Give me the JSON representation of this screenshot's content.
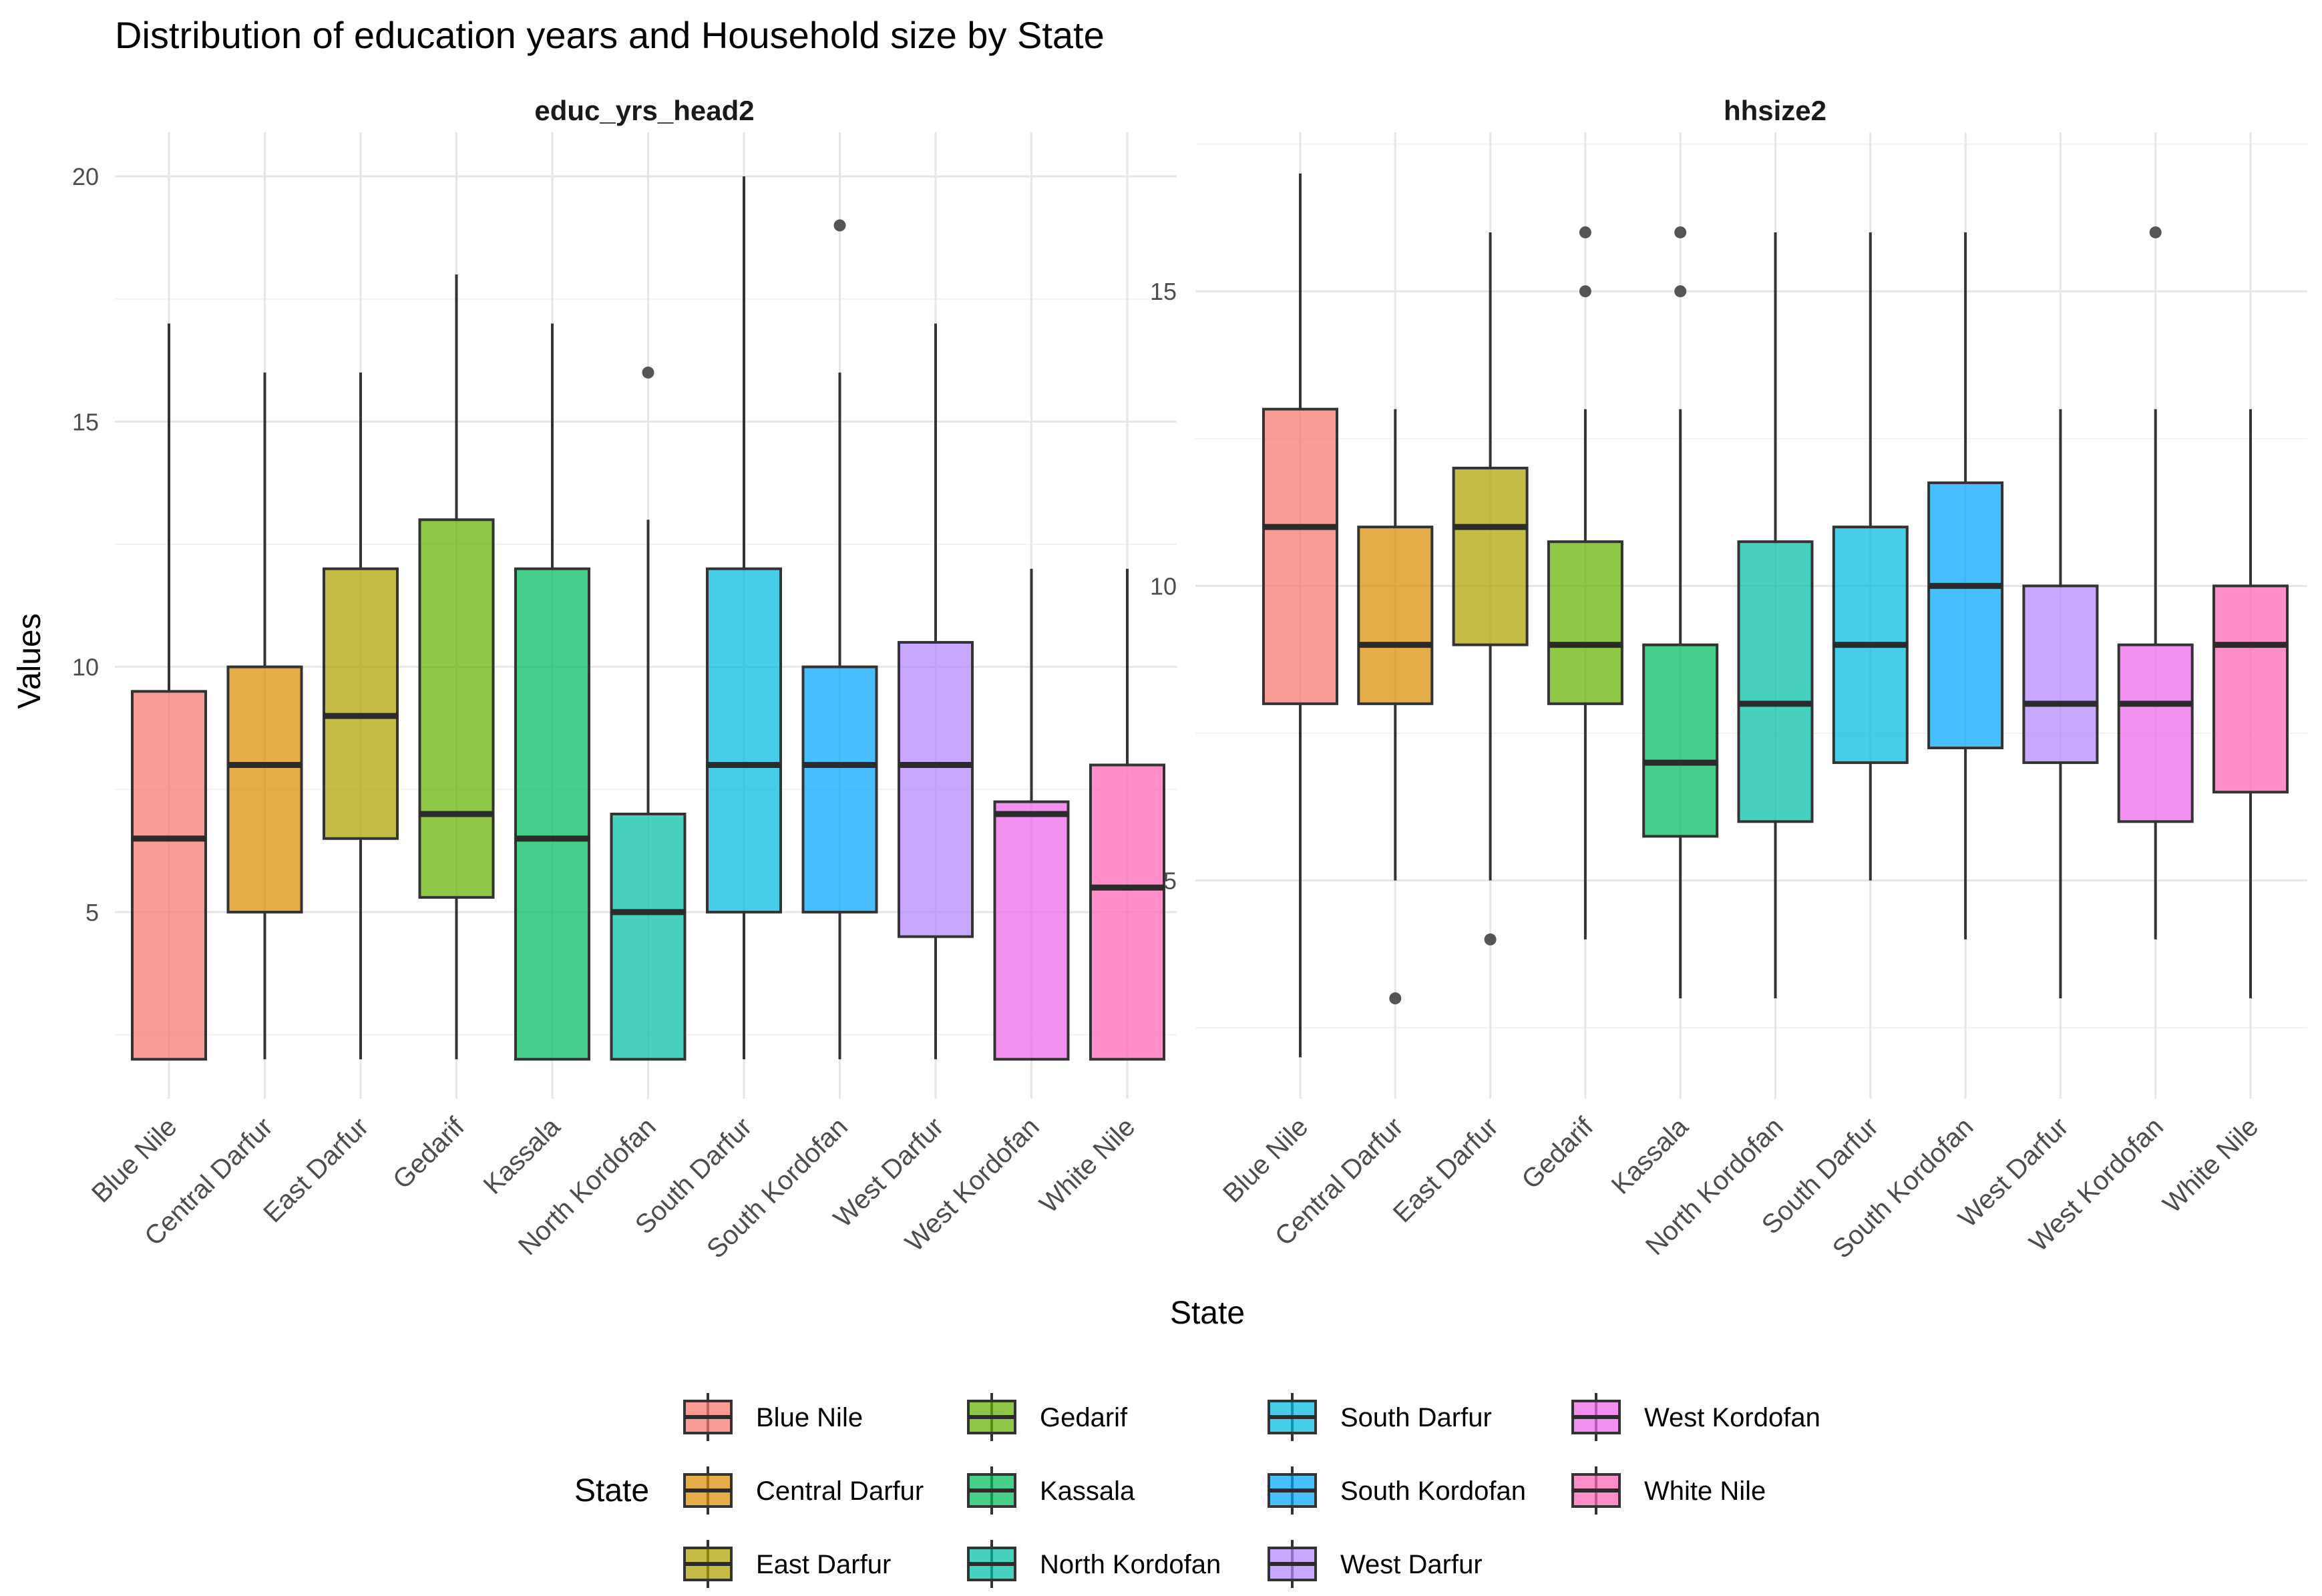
{
  "chart_data": {
    "type": "boxplot",
    "title": "Distribution of education years and Household size by State",
    "xlabel": "State",
    "ylabel": "Values",
    "grid": true,
    "legend": {
      "title": "State",
      "position": "bottom",
      "entries": [
        "Blue Nile",
        "Central Darfur",
        "East Darfur",
        "Gedarif",
        "Kassala",
        "North Kordofan",
        "South Darfur",
        "South Kordofan",
        "West Darfur",
        "West Kordofan",
        "White Nile"
      ]
    },
    "colors": {
      "Blue Nile": "#F8766D",
      "Central Darfur": "#DB8E00",
      "East Darfur": "#AEA200",
      "Gedarif": "#64B200",
      "Kassala": "#00BD5C",
      "North Kordofan": "#00C1A7",
      "South Darfur": "#00BADE",
      "South Kordofan": "#00A6FF",
      "West Darfur": "#B385FF",
      "West Kordofan": "#EF67EB",
      "White Nile": "#FF63B6"
    },
    "categories": [
      "Blue Nile",
      "Central Darfur",
      "East Darfur",
      "Gedarif",
      "Kassala",
      "North Kordofan",
      "South Darfur",
      "South Kordofan",
      "West Darfur",
      "West Kordofan",
      "White Nile"
    ],
    "panels": [
      {
        "name": "educ_yrs_head2",
        "ylim": [
          1.2,
          20.9
        ],
        "yticks": [
          5,
          10,
          15,
          20
        ],
        "minor_yticks": [
          2.5,
          7.5,
          12.5,
          17.5
        ],
        "boxes": [
          {
            "state": "Blue Nile",
            "min": 2,
            "q1": 2,
            "median": 6.5,
            "q3": 9.5,
            "max": 17,
            "outliers": []
          },
          {
            "state": "Central Darfur",
            "min": 2,
            "q1": 5,
            "median": 8,
            "q3": 10,
            "max": 16,
            "outliers": []
          },
          {
            "state": "East Darfur",
            "min": 2,
            "q1": 6.5,
            "median": 9,
            "q3": 12,
            "max": 16,
            "outliers": []
          },
          {
            "state": "Gedarif",
            "min": 2,
            "q1": 5.3,
            "median": 7,
            "q3": 13,
            "max": 18,
            "outliers": []
          },
          {
            "state": "Kassala",
            "min": 2,
            "q1": 2,
            "median": 6.5,
            "q3": 12,
            "max": 17,
            "outliers": []
          },
          {
            "state": "North Kordofan",
            "min": 2,
            "q1": 2,
            "median": 5,
            "q3": 7,
            "max": 13,
            "outliers": [
              16
            ]
          },
          {
            "state": "South Darfur",
            "min": 2,
            "q1": 5,
            "median": 8,
            "q3": 12,
            "max": 20,
            "outliers": []
          },
          {
            "state": "South Kordofan",
            "min": 2,
            "q1": 5,
            "median": 8,
            "q3": 10,
            "max": 16,
            "outliers": [
              19
            ]
          },
          {
            "state": "West Darfur",
            "min": 2,
            "q1": 4.5,
            "median": 8,
            "q3": 10.5,
            "max": 17,
            "outliers": []
          },
          {
            "state": "West Kordofan",
            "min": 2,
            "q1": 2,
            "median": 7,
            "q3": 7.25,
            "max": 12,
            "outliers": []
          },
          {
            "state": "White Nile",
            "min": 2,
            "q1": 2,
            "median": 5.5,
            "q3": 8,
            "max": 12,
            "outliers": []
          }
        ]
      },
      {
        "name": "hhsize2",
        "ylim": [
          1.3,
          17.7
        ],
        "yticks": [
          5,
          10,
          15
        ],
        "minor_yticks": [
          2.5,
          7.5,
          12.5,
          17.5
        ],
        "boxes": [
          {
            "state": "Blue Nile",
            "min": 2,
            "q1": 8,
            "median": 11,
            "q3": 13,
            "max": 17,
            "outliers": []
          },
          {
            "state": "Central Darfur",
            "min": 5,
            "q1": 8,
            "median": 9,
            "q3": 11,
            "max": 13,
            "outliers": [
              3
            ]
          },
          {
            "state": "East Darfur",
            "min": 5,
            "q1": 9,
            "median": 11,
            "q3": 12,
            "max": 16,
            "outliers": [
              4
            ]
          },
          {
            "state": "Gedarif",
            "min": 4,
            "q1": 8,
            "median": 9,
            "q3": 10.75,
            "max": 13,
            "outliers": [
              15,
              16
            ]
          },
          {
            "state": "Kassala",
            "min": 3,
            "q1": 5.75,
            "median": 7,
            "q3": 9,
            "max": 13,
            "outliers": [
              15,
              16
            ]
          },
          {
            "state": "North Kordofan",
            "min": 3,
            "q1": 6,
            "median": 8,
            "q3": 10.75,
            "max": 16,
            "outliers": []
          },
          {
            "state": "South Darfur",
            "min": 5,
            "q1": 7,
            "median": 9,
            "q3": 11,
            "max": 16,
            "outliers": []
          },
          {
            "state": "South Kordofan",
            "min": 4,
            "q1": 7.25,
            "median": 10,
            "q3": 11.75,
            "max": 16,
            "outliers": []
          },
          {
            "state": "West Darfur",
            "min": 3,
            "q1": 7,
            "median": 8,
            "q3": 10,
            "max": 13,
            "outliers": []
          },
          {
            "state": "West Kordofan",
            "min": 4,
            "q1": 6,
            "median": 8,
            "q3": 9,
            "max": 13,
            "outliers": [
              16
            ]
          },
          {
            "state": "White Nile",
            "min": 3,
            "q1": 6.5,
            "median": 9,
            "q3": 10,
            "max": 13,
            "outliers": []
          }
        ]
      }
    ]
  }
}
